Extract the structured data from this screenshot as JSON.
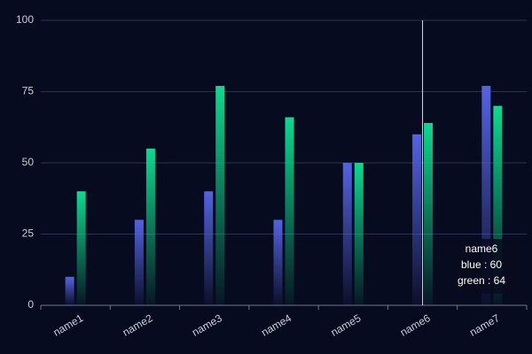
{
  "chart_data": {
    "type": "bar",
    "categories": [
      "name1",
      "name2",
      "name3",
      "name4",
      "name5",
      "name6",
      "name7"
    ],
    "series": [
      {
        "name": "blue",
        "color": "#5563e0",
        "values": [
          10,
          30,
          40,
          30,
          50,
          60,
          77
        ]
      },
      {
        "name": "green",
        "color": "#0fd98e",
        "values": [
          40,
          55,
          77,
          66,
          50,
          64,
          70
        ]
      }
    ],
    "ylim": [
      0,
      100
    ],
    "yticks": [
      0,
      25,
      50,
      75,
      100
    ],
    "grid": true,
    "tooltip": {
      "title": "name6",
      "lines": [
        "blue : 60",
        "green : 64"
      ]
    }
  }
}
